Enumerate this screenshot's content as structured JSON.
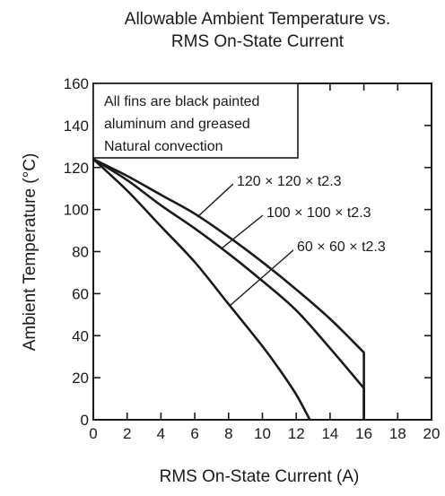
{
  "chart_data": {
    "type": "line",
    "title_lines": [
      "Allowable Ambient Temperature vs.",
      "RMS On-State Current"
    ],
    "xlabel": "RMS On-State Current  (A)",
    "ylabel": "Ambient Temperature  (°C)",
    "xlim": [
      0,
      20
    ],
    "ylim": [
      0,
      160
    ],
    "x_ticks": [
      0,
      2,
      4,
      6,
      8,
      10,
      12,
      14,
      16,
      18,
      20
    ],
    "y_ticks": [
      0,
      20,
      40,
      60,
      80,
      100,
      120,
      140,
      160
    ],
    "grid": false,
    "note_lines": [
      "All fins are black painted",
      "aluminum and greased",
      "Natural convection"
    ],
    "series": [
      {
        "name": "120 × 120 × t2.3",
        "x": [
          0,
          2,
          4,
          6,
          8,
          10,
          12,
          14,
          16,
          16
        ],
        "y": [
          124,
          116,
          107,
          98,
          87,
          75,
          62,
          48,
          32,
          0
        ]
      },
      {
        "name": "100 × 100 × t2.3",
        "x": [
          0,
          2,
          4,
          6,
          8,
          10,
          12,
          14,
          16,
          16
        ],
        "y": [
          124,
          114,
          102,
          91,
          79,
          66,
          52,
          34,
          15,
          0
        ]
      },
      {
        "name": "60 × 60 × t2.3",
        "x": [
          0,
          2,
          4,
          6,
          8,
          10,
          11,
          12,
          12.8
        ],
        "y": [
          124,
          109,
          92,
          75,
          55,
          35,
          24,
          12,
          0
        ]
      }
    ]
  }
}
